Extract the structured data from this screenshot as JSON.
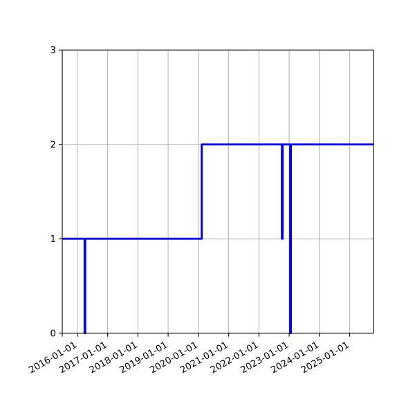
{
  "figure": {
    "background_color": "#ffffff",
    "title": ""
  },
  "chart_data": {
    "type": "line",
    "drawstyle": "steps-post",
    "title": "",
    "xlabel": "",
    "ylabel": "",
    "legend": null,
    "grid": true,
    "line_color": "#0000ff",
    "line_width": 2.8,
    "grid_color": "#b0b0b0",
    "spine_color": "#000000",
    "x_tick_labels": [
      "2016-01-01",
      "2017-01-01",
      "2018-01-01",
      "2019-01-01",
      "2020-01-01",
      "2021-01-01",
      "2022-01-01",
      "2023-01-01",
      "2024-01-01",
      "2025-01-01"
    ],
    "x_label_rotation_deg": 30,
    "xlim": [
      "2015-07-03",
      "2025-10-15"
    ],
    "y_ticks": [
      0,
      1,
      2,
      3
    ],
    "y_tick_labels": [
      "0",
      "1",
      "2",
      "3"
    ],
    "ylim": [
      0,
      3
    ],
    "steps": [
      {
        "date": "2015-07-03",
        "value": 1
      },
      {
        "date": "2016-03-28",
        "value": 0
      },
      {
        "date": "2016-04-05",
        "value": 1
      },
      {
        "date": "2020-02-10",
        "value": 2
      },
      {
        "date": "2022-10-05",
        "value": 1
      },
      {
        "date": "2022-10-14",
        "value": 2
      },
      {
        "date": "2023-01-13",
        "value": 0
      },
      {
        "date": "2023-01-22",
        "value": 2
      },
      {
        "date": "2025-10-15",
        "value": 2
      }
    ]
  }
}
